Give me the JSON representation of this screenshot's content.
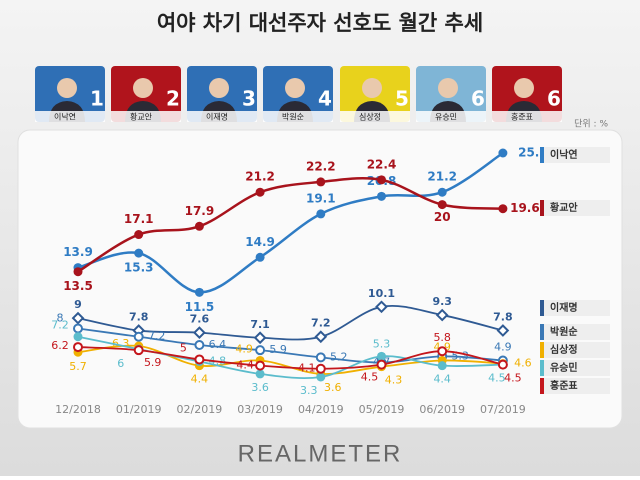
{
  "chart_data": {
    "type": "line",
    "title": "여야 차기 대선주자 선호도 월간 추세",
    "unit": "단위 : %",
    "ranking": [
      {
        "name": "이낙연",
        "rank": 1,
        "color": "#2f6fb5"
      },
      {
        "name": "황교안",
        "rank": 2,
        "color": "#b0141c"
      },
      {
        "name": "이재명",
        "rank": 3,
        "color": "#2f6fb5"
      },
      {
        "name": "박원순",
        "rank": 4,
        "color": "#2f6fb5"
      },
      {
        "name": "심상정",
        "rank": 5,
        "color": "#e8d21c"
      },
      {
        "name": "유승민",
        "rank": 6,
        "color": "#7fb5d6"
      },
      {
        "name": "홍준표",
        "rank": 6,
        "color": "#b0141c"
      }
    ],
    "categories": [
      "12/2018",
      "01/2019",
      "02/2019",
      "03/2019",
      "04/2019",
      "05/2019",
      "06/2019",
      "07/2019"
    ],
    "series": [
      {
        "name": "이낙연",
        "color": "#2f7cc4",
        "values": [
          13.9,
          15.3,
          11.5,
          14.9,
          19.1,
          20.8,
          21.2,
          25.0
        ],
        "value_labels": [
          "13.9",
          "15.3",
          "11.5",
          "14.9",
          "19.1",
          "20.8",
          "21.2",
          "25.0"
        ]
      },
      {
        "name": "황교안",
        "color": "#a8131c",
        "values": [
          13.5,
          17.1,
          17.9,
          21.2,
          22.2,
          22.4,
          20.0,
          19.6
        ]
      },
      {
        "name": "이재명",
        "color": "#2f5a93",
        "values": [
          9.0,
          7.8,
          7.6,
          7.1,
          7.2,
          10.1,
          9.3,
          7.8
        ]
      },
      {
        "name": "박원순",
        "color": "#3a78b5",
        "values": [
          8.0,
          7.2,
          6.4,
          5.9,
          5.2,
          4.7,
          5.3,
          4.9
        ]
      },
      {
        "name": "심상정",
        "color": "#f0b000",
        "values": [
          5.7,
          6.3,
          4.4,
          4.9,
          3.6,
          4.3,
          4.9,
          4.6
        ]
      },
      {
        "name": "유승민",
        "color": "#5bbccc",
        "values": [
          7.2,
          6.0,
          4.8,
          3.6,
          3.3,
          5.3,
          4.4,
          4.5
        ]
      },
      {
        "name": "홍준표",
        "color": "#c4161c",
        "values": [
          6.2,
          5.9,
          5.0,
          4.4,
          4.1,
          4.5,
          5.8,
          4.5
        ]
      }
    ],
    "source": "REALMETER"
  }
}
